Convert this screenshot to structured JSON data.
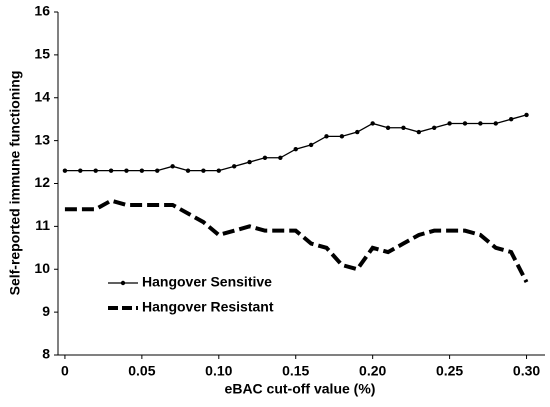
{
  "chart_data": {
    "type": "line",
    "xlabel": "eBAC cut-off value (%)",
    "ylabel": "Self-reported immune functioning",
    "x": [
      0,
      0.01,
      0.02,
      0.03,
      0.04,
      0.05,
      0.06,
      0.07,
      0.08,
      0.09,
      0.1,
      0.11,
      0.12,
      0.13,
      0.14,
      0.15,
      0.16,
      0.17,
      0.18,
      0.19,
      0.2,
      0.21,
      0.22,
      0.23,
      0.24,
      0.25,
      0.26,
      0.27,
      0.28,
      0.29,
      0.3
    ],
    "series": [
      {
        "name": "Hangover Sensitive",
        "color": "#000000",
        "style": "solid",
        "values": [
          12.3,
          12.3,
          12.3,
          12.3,
          12.3,
          12.3,
          12.3,
          12.4,
          12.3,
          12.3,
          12.3,
          12.4,
          12.5,
          12.6,
          12.6,
          12.8,
          12.9,
          13.1,
          13.1,
          13.2,
          13.4,
          13.3,
          13.3,
          13.2,
          13.3,
          13.4,
          13.4,
          13.4,
          13.4,
          13.5,
          13.6
        ]
      },
      {
        "name": "Hangover Resistant",
        "color": "#000000",
        "style": "dashed",
        "values": [
          11.4,
          11.4,
          11.4,
          11.6,
          11.5,
          11.5,
          11.5,
          11.5,
          11.3,
          11.1,
          10.8,
          10.9,
          11.0,
          10.9,
          10.9,
          10.9,
          10.6,
          10.5,
          10.1,
          10.0,
          10.5,
          10.4,
          10.6,
          10.8,
          10.9,
          10.9,
          10.9,
          10.8,
          10.5,
          10.4,
          9.7
        ]
      }
    ],
    "xlim": [
      -0.0045,
      0.312
    ],
    "xticks": [
      0,
      0.05,
      {
        "value": 0.1,
        "label": "0.10"
      },
      0.15,
      {
        "value": 0.2,
        "label": "0.20"
      },
      0.25,
      {
        "value": 0.3,
        "label": "0.30"
      }
    ],
    "ylim": [
      8,
      16
    ],
    "yticks": [
      8,
      9,
      10,
      11,
      12,
      13,
      14,
      15,
      16
    ],
    "grid": false,
    "legend": "lower left"
  }
}
